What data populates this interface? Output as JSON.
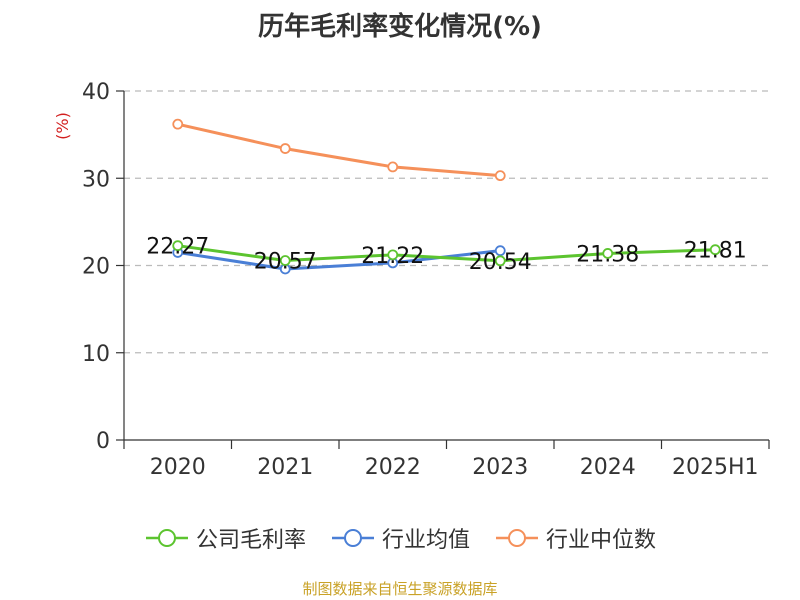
{
  "title": "历年毛利率变化情况(%)",
  "source": "制图数据来自恒生聚源数据库",
  "chart_data": {
    "type": "line",
    "title": "历年毛利率变化情况(%)",
    "ylabel": "(%)",
    "ylim": [
      0,
      40
    ],
    "yticks": [
      0,
      10,
      20,
      30,
      40
    ],
    "categories": [
      "2020",
      "2021",
      "2022",
      "2023",
      "2024",
      "2025H1"
    ],
    "grid": true,
    "legend_position": "bottom",
    "series": [
      {
        "name": "公司毛利率",
        "color": "#5cc42f",
        "values": [
          22.27,
          20.57,
          21.22,
          20.54,
          21.38,
          21.81
        ],
        "labels": [
          "22.27",
          "20.57",
          "21.22",
          "20.54",
          "21.38",
          "21.81"
        ]
      },
      {
        "name": "行业均值",
        "color": "#4a7fd6",
        "values": [
          21.5,
          19.6,
          20.3,
          21.7,
          null,
          null
        ]
      },
      {
        "name": "行业中位数",
        "color": "#f5905a",
        "values": [
          36.2,
          33.4,
          31.3,
          30.3,
          null,
          null
        ]
      }
    ]
  }
}
